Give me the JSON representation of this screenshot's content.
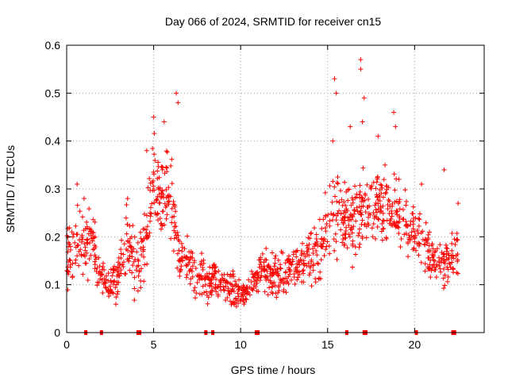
{
  "chart_data": {
    "type": "scatter",
    "title": "Day 066 of 2024, SRMTID for receiver cn15",
    "xlabel": "GPS time / hours",
    "ylabel": "SRMTID / TECUs",
    "xlim": [
      0,
      24
    ],
    "ylim": [
      0,
      0.6
    ],
    "xticks": [
      "0",
      "5",
      "10",
      "15",
      "20"
    ],
    "xtick_values": [
      0,
      5,
      10,
      15,
      20
    ],
    "yticks": [
      "0",
      "0.1",
      "0.2",
      "0.3",
      "0.4",
      "0.5",
      "0.6"
    ],
    "ytick_values": [
      0,
      0.1,
      0.2,
      0.3,
      0.4,
      0.5,
      0.6
    ],
    "grid": true,
    "marker": "plus",
    "color": "#ff0000",
    "envelope": {
      "x": [
        0,
        0.5,
        1.0,
        1.5,
        2.0,
        2.5,
        3.0,
        3.5,
        4.0,
        4.5,
        5.0,
        5.5,
        6.0,
        6.5,
        7.0,
        7.5,
        8.0,
        8.5,
        9.0,
        9.5,
        10.0,
        10.5,
        11.0,
        11.5,
        12.0,
        12.5,
        13.0,
        13.5,
        14.0,
        14.5,
        15.0,
        15.5,
        16.0,
        16.5,
        17.0,
        17.5,
        18.0,
        18.5,
        19.0,
        19.5,
        20.0,
        20.5,
        21.0,
        21.5,
        22.0,
        22.5
      ],
      "median": [
        0.15,
        0.18,
        0.2,
        0.19,
        0.12,
        0.1,
        0.12,
        0.2,
        0.13,
        0.18,
        0.33,
        0.27,
        0.29,
        0.14,
        0.15,
        0.12,
        0.11,
        0.11,
        0.1,
        0.09,
        0.08,
        0.09,
        0.12,
        0.13,
        0.12,
        0.12,
        0.13,
        0.15,
        0.16,
        0.18,
        0.22,
        0.26,
        0.24,
        0.23,
        0.25,
        0.28,
        0.27,
        0.24,
        0.25,
        0.23,
        0.21,
        0.19,
        0.15,
        0.14,
        0.15,
        0.17
      ],
      "spread": [
        0.05,
        0.06,
        0.07,
        0.06,
        0.03,
        0.03,
        0.05,
        0.06,
        0.06,
        0.07,
        0.08,
        0.08,
        0.09,
        0.04,
        0.04,
        0.04,
        0.04,
        0.04,
        0.03,
        0.03,
        0.02,
        0.02,
        0.03,
        0.04,
        0.04,
        0.04,
        0.04,
        0.05,
        0.05,
        0.06,
        0.07,
        0.09,
        0.08,
        0.07,
        0.08,
        0.08,
        0.07,
        0.06,
        0.07,
        0.06,
        0.05,
        0.05,
        0.04,
        0.04,
        0.04,
        0.04
      ]
    },
    "peaks": [
      {
        "x": 0.3,
        "y": 0.21
      },
      {
        "x": 0.6,
        "y": 0.31
      },
      {
        "x": 1.0,
        "y": 0.28
      },
      {
        "x": 3.5,
        "y": 0.28
      },
      {
        "x": 4.6,
        "y": 0.38
      },
      {
        "x": 5.0,
        "y": 0.45
      },
      {
        "x": 5.6,
        "y": 0.44
      },
      {
        "x": 6.3,
        "y": 0.5
      },
      {
        "x": 6.4,
        "y": 0.48
      },
      {
        "x": 15.4,
        "y": 0.53
      },
      {
        "x": 15.5,
        "y": 0.5
      },
      {
        "x": 15.3,
        "y": 0.4
      },
      {
        "x": 16.3,
        "y": 0.43
      },
      {
        "x": 16.9,
        "y": 0.57
      },
      {
        "x": 16.9,
        "y": 0.55
      },
      {
        "x": 17.1,
        "y": 0.49
      },
      {
        "x": 17.0,
        "y": 0.44
      },
      {
        "x": 17.9,
        "y": 0.41
      },
      {
        "x": 18.3,
        "y": 0.35
      },
      {
        "x": 18.8,
        "y": 0.46
      },
      {
        "x": 18.9,
        "y": 0.43
      },
      {
        "x": 19.1,
        "y": 0.32
      },
      {
        "x": 20.4,
        "y": 0.31
      },
      {
        "x": 21.7,
        "y": 0.34
      },
      {
        "x": 22.5,
        "y": 0.27
      }
    ],
    "gap_markers_x": [
      1.1,
      2.0,
      4.1,
      4.2,
      8.0,
      8.4,
      10.9,
      11.0,
      16.1,
      17.1,
      17.2,
      20.1,
      22.2,
      22.3
    ]
  }
}
